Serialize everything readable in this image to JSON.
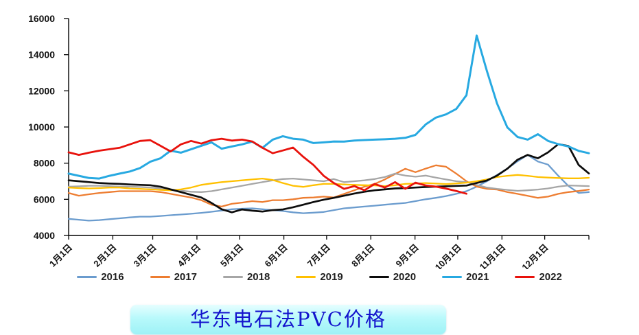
{
  "footer_title": {
    "text": "华东电石法PVC价格"
  },
  "chart_data": {
    "type": "line",
    "title": "华东电石法PVC价格",
    "xlabel": "",
    "ylabel": "",
    "ylim": [
      4000,
      16000
    ],
    "y_ticks": [
      4000,
      6000,
      8000,
      10000,
      12000,
      14000,
      16000
    ],
    "grid": false,
    "legend_position": "bottom",
    "x_total_days": 365,
    "month_start_days": [
      0,
      31,
      59,
      90,
      120,
      151,
      181,
      212,
      243,
      273,
      304,
      334
    ],
    "x_labels": [
      "1月1日",
      "2月1日",
      "3月1日",
      "4月1日",
      "5月1日",
      "6月1日",
      "7月1日",
      "8月1日",
      "9月1日",
      "10月1日",
      "11月1日",
      "12月1日"
    ],
    "point_interval_days": 7.157,
    "series": [
      {
        "name": "2016",
        "color": "#6B9CCE",
        "width": 2.3,
        "values": [
          4920,
          4870,
          4820,
          4850,
          4900,
          4950,
          5000,
          5040,
          5040,
          5080,
          5120,
          5160,
          5200,
          5250,
          5310,
          5380,
          5450,
          5480,
          5500,
          5450,
          5400,
          5350,
          5280,
          5230,
          5260,
          5300,
          5400,
          5500,
          5550,
          5600,
          5650,
          5700,
          5750,
          5800,
          5900,
          6000,
          6080,
          6180,
          6300,
          6450,
          6700,
          7000,
          7350,
          7700,
          8100,
          8460,
          8090,
          7920,
          7300,
          6730,
          6350,
          6400
        ]
      },
      {
        "name": "2017",
        "color": "#ED7D31",
        "width": 2.3,
        "values": [
          6350,
          6200,
          6280,
          6350,
          6400,
          6450,
          6450,
          6450,
          6450,
          6400,
          6300,
          6200,
          6100,
          5950,
          5700,
          5600,
          5750,
          5820,
          5900,
          5850,
          5950,
          5950,
          6000,
          6080,
          6100,
          6150,
          6100,
          6300,
          6500,
          6700,
          6850,
          7100,
          7400,
          7690,
          7500,
          7700,
          7880,
          7800,
          7420,
          7000,
          6700,
          6580,
          6540,
          6400,
          6300,
          6190,
          6080,
          6150,
          6300,
          6400,
          6460,
          6540
        ]
      },
      {
        "name": "2018",
        "color": "#A6A6A6",
        "width": 2.3,
        "values": [
          6700,
          6720,
          6750,
          6750,
          6730,
          6700,
          6700,
          6680,
          6650,
          6600,
          6550,
          6480,
          6420,
          6400,
          6450,
          6550,
          6650,
          6750,
          6850,
          6950,
          7050,
          7120,
          7150,
          7100,
          7050,
          7000,
          7120,
          6950,
          7000,
          7050,
          7120,
          7230,
          7420,
          7310,
          7250,
          7310,
          7200,
          7100,
          7000,
          6950,
          6800,
          6650,
          6580,
          6520,
          6470,
          6500,
          6540,
          6600,
          6700,
          6770,
          6750,
          6730
        ]
      },
      {
        "name": "2019",
        "color": "#FFC000",
        "width": 2.3,
        "values": [
          6650,
          6620,
          6600,
          6620,
          6650,
          6650,
          6600,
          6580,
          6550,
          6520,
          6500,
          6550,
          6650,
          6800,
          6880,
          6950,
          7000,
          7050,
          7100,
          7150,
          7070,
          6900,
          6750,
          6690,
          6780,
          6850,
          6850,
          6820,
          6800,
          6780,
          6770,
          6730,
          6780,
          6850,
          6870,
          6900,
          6870,
          6840,
          6880,
          6920,
          7000,
          7100,
          7230,
          7300,
          7350,
          7300,
          7230,
          7200,
          7180,
          7160,
          7160,
          7190
        ]
      },
      {
        "name": "2020",
        "color": "#0d0d0d",
        "width": 2.7,
        "values": [
          7050,
          7000,
          6950,
          6900,
          6870,
          6850,
          6820,
          6800,
          6780,
          6700,
          6550,
          6400,
          6250,
          6100,
          5800,
          5450,
          5280,
          5440,
          5370,
          5320,
          5400,
          5440,
          5560,
          5700,
          5850,
          5980,
          6080,
          6200,
          6320,
          6420,
          6500,
          6550,
          6600,
          6620,
          6650,
          6680,
          6700,
          6720,
          6740,
          6760,
          6900,
          7040,
          7310,
          7690,
          8190,
          8460,
          8270,
          8600,
          9050,
          8950,
          7900,
          7430
        ]
      },
      {
        "name": "2021",
        "color": "#27A9E1",
        "width": 3.0,
        "values": [
          7420,
          7300,
          7180,
          7150,
          7300,
          7420,
          7540,
          7730,
          8080,
          8270,
          8690,
          8580,
          8770,
          8960,
          9150,
          8800,
          8920,
          9040,
          9190,
          8850,
          9300,
          9490,
          9350,
          9300,
          9110,
          9150,
          9200,
          9190,
          9250,
          9280,
          9300,
          9320,
          9350,
          9400,
          9565,
          10140,
          10520,
          10700,
          11000,
          11760,
          15060,
          13100,
          11300,
          9980,
          9450,
          9300,
          9600,
          9230,
          9050,
          8920,
          8680,
          8550
        ]
      },
      {
        "name": "2022",
        "color": "#E8120C",
        "width": 2.8,
        "values": [
          8600,
          8460,
          8580,
          8690,
          8770,
          8850,
          9040,
          9230,
          9270,
          8960,
          8650,
          9040,
          9230,
          9080,
          9270,
          9350,
          9250,
          9300,
          9200,
          8850,
          8550,
          8700,
          8860,
          8350,
          7900,
          7300,
          6900,
          6580,
          6730,
          6500,
          6850,
          6650,
          6950,
          6580,
          6920,
          6770,
          6700,
          6590,
          6460,
          6310
        ]
      }
    ]
  }
}
